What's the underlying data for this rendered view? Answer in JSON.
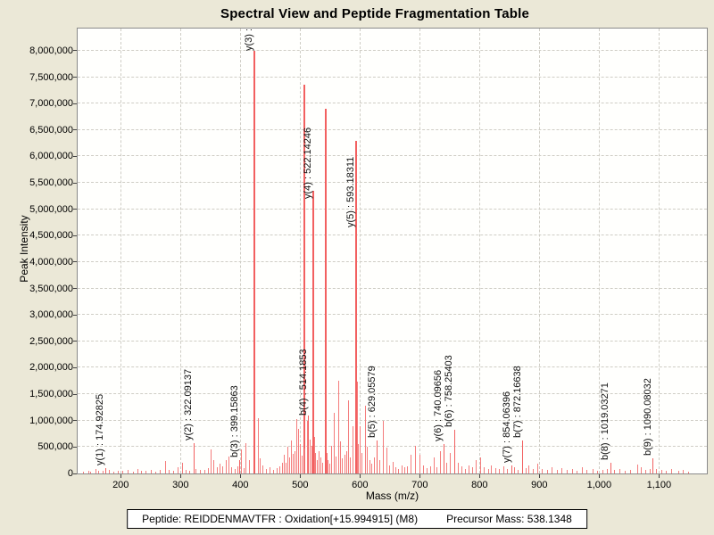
{
  "title": "Spectral View and Peptide Fragmentation Table",
  "footer": {
    "peptide_label": "Peptide: REIDDENMAVTFR : Oxidation[+15.994915] (M8)",
    "precursor_label": "Precursor Mass: 538.1348"
  },
  "chart_data": {
    "type": "bar",
    "subtype": "mass-spectrum",
    "title": "Spectral View and Peptide Fragmentation Table",
    "xlabel": "Mass (m/z)",
    "ylabel": "Peak Intensity",
    "xlim": [
      128,
      1180
    ],
    "ylim": [
      0,
      8420000
    ],
    "grid": "dashed",
    "legend": "none",
    "peak_color": "#f47c7c",
    "annotated_peak_color": "#f26060",
    "x_ticks": [
      {
        "v": 200,
        "label": "200"
      },
      {
        "v": 300,
        "label": "300"
      },
      {
        "v": 400,
        "label": "400"
      },
      {
        "v": 500,
        "label": "500"
      },
      {
        "v": 600,
        "label": "600"
      },
      {
        "v": 700,
        "label": "700"
      },
      {
        "v": 800,
        "label": "800"
      },
      {
        "v": 900,
        "label": "900"
      },
      {
        "v": 1000,
        "label": "1,000"
      },
      {
        "v": 1100,
        "label": "1,100"
      }
    ],
    "y_ticks": [
      {
        "v": 0,
        "label": "0"
      },
      {
        "v": 500000,
        "label": "500,000"
      },
      {
        "v": 1000000,
        "label": "1,000,000"
      },
      {
        "v": 1500000,
        "label": "1,500,000"
      },
      {
        "v": 2000000,
        "label": "2,000,000"
      },
      {
        "v": 2500000,
        "label": "2,500,000"
      },
      {
        "v": 3000000,
        "label": "3,000,000"
      },
      {
        "v": 3500000,
        "label": "3,500,000"
      },
      {
        "v": 4000000,
        "label": "4,000,000"
      },
      {
        "v": 4500000,
        "label": "4,500,000"
      },
      {
        "v": 5000000,
        "label": "5,000,000"
      },
      {
        "v": 5500000,
        "label": "5,500,000"
      },
      {
        "v": 6000000,
        "label": "6,000,000"
      },
      {
        "v": 6500000,
        "label": "6,500,000"
      },
      {
        "v": 7000000,
        "label": "7,000,000"
      },
      {
        "v": 7500000,
        "label": "7,500,000"
      },
      {
        "v": 8000000,
        "label": "8,000,000"
      }
    ],
    "annotated_peaks": [
      {
        "label": "y(1) : 174.92825",
        "mz": 174.93,
        "intensity": 100000,
        "ldrop": 0
      },
      {
        "label": "y(2) : 322.09137",
        "mz": 322.09,
        "intensity": 570000,
        "ldrop": 0
      },
      {
        "label": "b(3) : 399.15863",
        "mz": 399.16,
        "intensity": 250000,
        "ldrop": 0
      },
      {
        "label": "y(3) :",
        "mz": 423.2,
        "intensity": 8000000,
        "ldrop": 3
      },
      {
        "label": "b(4) : 514.1853",
        "mz": 514.19,
        "intensity": 1090000,
        "ldrop": 3
      },
      {
        "label": "y(4) : 522.14246",
        "mz": 522.14,
        "intensity": 5350000,
        "ldrop": 12
      },
      {
        "label": "y(5) : 593.18311",
        "mz": 593.18,
        "intensity": 6300000,
        "ldrop": 100
      },
      {
        "label": "b(5) : 629.05579",
        "mz": 629.06,
        "intensity": 620000,
        "ldrop": 0
      },
      {
        "label": "y(6) : 740.09656",
        "mz": 740.1,
        "intensity": 550000,
        "ldrop": 0
      },
      {
        "label": "b(6) : 758.25403",
        "mz": 758.25,
        "intensity": 830000,
        "ldrop": 0
      },
      {
        "label": "y(7) : 854.06396",
        "mz": 854.06,
        "intensity": 160000,
        "ldrop": 0
      },
      {
        "label": "b(7) : 872.16638",
        "mz": 872.17,
        "intensity": 620000,
        "ldrop": 0
      },
      {
        "label": "b(8) : 1019.03271",
        "mz": 1019.03,
        "intensity": 200000,
        "ldrop": 0
      },
      {
        "label": "b(9) : 1090.08032",
        "mz": 1090.08,
        "intensity": 290000,
        "ldrop": 0
      }
    ],
    "background_peaks": [
      [
        138,
        40000
      ],
      [
        146,
        55000
      ],
      [
        150,
        35000
      ],
      [
        158,
        90000
      ],
      [
        163,
        50000
      ],
      [
        170,
        45000
      ],
      [
        181,
        60000
      ],
      [
        189,
        35000
      ],
      [
        196,
        45000
      ],
      [
        204,
        50000
      ],
      [
        213,
        70000
      ],
      [
        221,
        40000
      ],
      [
        228,
        90000
      ],
      [
        235,
        55000
      ],
      [
        242,
        45000
      ],
      [
        251,
        60000
      ],
      [
        259,
        40000
      ],
      [
        266,
        75000
      ],
      [
        275,
        230000
      ],
      [
        281,
        70000
      ],
      [
        288,
        55000
      ],
      [
        296,
        120000
      ],
      [
        303,
        200000
      ],
      [
        310,
        65000
      ],
      [
        316,
        50000
      ],
      [
        326,
        90000
      ],
      [
        333,
        60000
      ],
      [
        340,
        70000
      ],
      [
        347,
        100000
      ],
      [
        351,
        450000
      ],
      [
        356,
        250000
      ],
      [
        361,
        120000
      ],
      [
        366,
        180000
      ],
      [
        371,
        130000
      ],
      [
        376,
        250000
      ],
      [
        381,
        320000
      ],
      [
        386,
        110000
      ],
      [
        391,
        90000
      ],
      [
        396,
        140000
      ],
      [
        402.5,
        450000
      ],
      [
        406,
        100000
      ],
      [
        410,
        570000
      ],
      [
        415,
        250000
      ],
      [
        429.5,
        1040000
      ],
      [
        433,
        280000
      ],
      [
        438,
        160000
      ],
      [
        444,
        90000
      ],
      [
        450,
        120000
      ],
      [
        456,
        70000
      ],
      [
        461,
        100000
      ],
      [
        466,
        140000
      ],
      [
        470,
        200000
      ],
      [
        474,
        350000
      ],
      [
        477,
        210000
      ],
      [
        480,
        500000
      ],
      [
        483,
        300000
      ],
      [
        486,
        620000
      ],
      [
        489,
        370000
      ],
      [
        492,
        420000
      ],
      [
        495,
        1030000
      ],
      [
        498,
        840000
      ],
      [
        501,
        560000
      ],
      [
        503,
        330000
      ],
      [
        505.9,
        7350000
      ],
      [
        508,
        480000
      ],
      [
        511.5,
        1000000
      ],
      [
        517,
        640000
      ],
      [
        519.5,
        530000
      ],
      [
        524,
        700000
      ],
      [
        526,
        380000
      ],
      [
        529,
        260000
      ],
      [
        532,
        420000
      ],
      [
        535,
        300000
      ],
      [
        538,
        200000
      ],
      [
        542,
        6900000
      ],
      [
        544.5,
        380000
      ],
      [
        547,
        260000
      ],
      [
        550,
        180000
      ],
      [
        553,
        530000
      ],
      [
        557,
        1150000
      ],
      [
        560,
        320000
      ],
      [
        564.5,
        1750000
      ],
      [
        567,
        600000
      ],
      [
        571,
        280000
      ],
      [
        575,
        350000
      ],
      [
        578,
        420000
      ],
      [
        581,
        1380000
      ],
      [
        584,
        300000
      ],
      [
        588,
        900000
      ],
      [
        595.5,
        1730000
      ],
      [
        598,
        560000
      ],
      [
        601,
        900000
      ],
      [
        604,
        380000
      ],
      [
        608.5,
        1280000
      ],
      [
        612,
        500000
      ],
      [
        616,
        260000
      ],
      [
        620,
        180000
      ],
      [
        624,
        300000
      ],
      [
        633,
        250000
      ],
      [
        639.5,
        1000000
      ],
      [
        645,
        490000
      ],
      [
        650,
        160000
      ],
      [
        655,
        220000
      ],
      [
        660,
        120000
      ],
      [
        665,
        90000
      ],
      [
        670,
        150000
      ],
      [
        675,
        110000
      ],
      [
        680,
        130000
      ],
      [
        686,
        350000
      ],
      [
        693,
        520000
      ],
      [
        700,
        350000
      ],
      [
        706,
        160000
      ],
      [
        712,
        100000
      ],
      [
        718,
        130000
      ],
      [
        724,
        300000
      ],
      [
        729,
        120000
      ],
      [
        734,
        420000
      ],
      [
        745,
        200000
      ],
      [
        751,
        380000
      ],
      [
        764,
        200000
      ],
      [
        770,
        130000
      ],
      [
        777,
        90000
      ],
      [
        783,
        160000
      ],
      [
        789,
        110000
      ],
      [
        795,
        250000
      ],
      [
        801,
        300000
      ],
      [
        808,
        120000
      ],
      [
        815,
        90000
      ],
      [
        820,
        150000
      ],
      [
        827,
        100000
      ],
      [
        833,
        80000
      ],
      [
        840,
        130000
      ],
      [
        846,
        90000
      ],
      [
        858,
        110000
      ],
      [
        864,
        70000
      ],
      [
        878,
        100000
      ],
      [
        883,
        150000
      ],
      [
        890,
        80000
      ],
      [
        897,
        180000
      ],
      [
        905,
        90000
      ],
      [
        913,
        60000
      ],
      [
        921,
        120000
      ],
      [
        930,
        70000
      ],
      [
        938,
        100000
      ],
      [
        947,
        60000
      ],
      [
        955,
        90000
      ],
      [
        963,
        50000
      ],
      [
        972,
        110000
      ],
      [
        980,
        60000
      ],
      [
        989,
        80000
      ],
      [
        997,
        55000
      ],
      [
        1006,
        70000
      ],
      [
        1013,
        90000
      ],
      [
        1026,
        60000
      ],
      [
        1034,
        90000
      ],
      [
        1043,
        50000
      ],
      [
        1052,
        70000
      ],
      [
        1064,
        175000
      ],
      [
        1071,
        120000
      ],
      [
        1078,
        60000
      ],
      [
        1085,
        90000
      ],
      [
        1096,
        80000
      ],
      [
        1104,
        75000
      ],
      [
        1112,
        55000
      ],
      [
        1121,
        90000
      ],
      [
        1133,
        45000
      ],
      [
        1141,
        60000
      ],
      [
        1150,
        40000
      ]
    ]
  }
}
